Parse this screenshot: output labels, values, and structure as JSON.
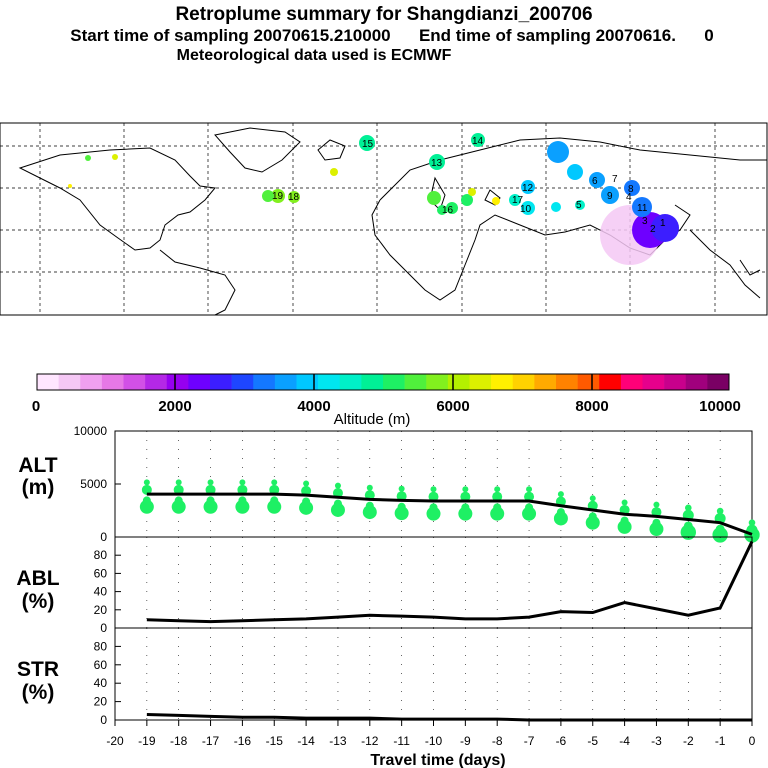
{
  "header": {
    "title": "Retroplume summary for Shangdianzi_200706",
    "sampling": "Start time of sampling 20070615.210000      End time of sampling 20070616.      0",
    "met": "Meteorological data used is ECMWF"
  },
  "map": {
    "labels": [
      "15",
      "14",
      "13",
      "12",
      "11",
      "10",
      "9",
      "8",
      "7",
      "6",
      "5",
      "4",
      "3",
      "2",
      "1",
      "19",
      "18",
      "17",
      "16"
    ]
  },
  "colorbar": {
    "ticks": [
      "0",
      "2000",
      "4000",
      "6000",
      "8000",
      "10000"
    ],
    "label": "Altitude (m)",
    "colors": [
      "#ffe6ff",
      "#f5c8f5",
      "#f0a0f0",
      "#e678e6",
      "#d250e6",
      "#b428e6",
      "#9600f0",
      "#6e00ff",
      "#3c1eff",
      "#1e46ff",
      "#1478ff",
      "#0aa0ff",
      "#00c8ff",
      "#00e6f0",
      "#00f0c8",
      "#00f096",
      "#1ef064",
      "#50f03c",
      "#82f01e",
      "#b4f000",
      "#dcf000",
      "#fff000",
      "#ffd200",
      "#ffaa00",
      "#ff8200",
      "#ff5a00",
      "#ff0000",
      "#ff0078",
      "#e6008c",
      "#c8008c",
      "#a0007d",
      "#7a0064"
    ]
  },
  "chart_data": {
    "type": "line",
    "xlabel": "Travel time (days)",
    "x": [
      -19,
      -18,
      -17,
      -16,
      -15,
      -14,
      -13,
      -12,
      -11,
      -10,
      -9,
      -8,
      -7,
      -6,
      -5,
      -4,
      -3,
      -2,
      -1,
      0
    ],
    "xticks": [
      "-20",
      "-19",
      "-18",
      "-17",
      "-16",
      "-15",
      "-14",
      "-13",
      "-12",
      "-11",
      "-10",
      "-9",
      "-8",
      "-7",
      "-6",
      "-5",
      "-4",
      "-3",
      "-2",
      "-1",
      "0"
    ],
    "xlim": [
      -20,
      0
    ],
    "panels": [
      {
        "name": "ALT",
        "label1": "ALT",
        "label2": "(m)",
        "ylim": [
          0,
          10000
        ],
        "yticks": [
          "0",
          "5000",
          "10000"
        ],
        "values": [
          4050,
          4050,
          4050,
          4050,
          4050,
          3950,
          3750,
          3550,
          3450,
          3400,
          3400,
          3400,
          3400,
          2950,
          2550,
          2150,
          1950,
          1650,
          1350,
          250
        ]
      },
      {
        "name": "ABL",
        "label1": "ABL",
        "label2": "(%)",
        "ylim": [
          0,
          100
        ],
        "yticks": [
          "0",
          "20",
          "40",
          "60",
          "80"
        ],
        "values": [
          9,
          8,
          7,
          8,
          9,
          10,
          12,
          14,
          13,
          12,
          10,
          10,
          12,
          18,
          17,
          28,
          21,
          14,
          22,
          95
        ]
      },
      {
        "name": "STR",
        "label1": "STR",
        "label2": "(%)",
        "ylim": [
          0,
          100
        ],
        "yticks": [
          "0",
          "20",
          "40",
          "60",
          "80"
        ],
        "values": [
          6,
          5,
          4,
          3,
          3,
          2,
          2,
          2,
          1,
          1,
          1,
          1,
          0,
          0,
          0,
          0,
          0,
          0,
          0,
          0
        ]
      }
    ]
  }
}
